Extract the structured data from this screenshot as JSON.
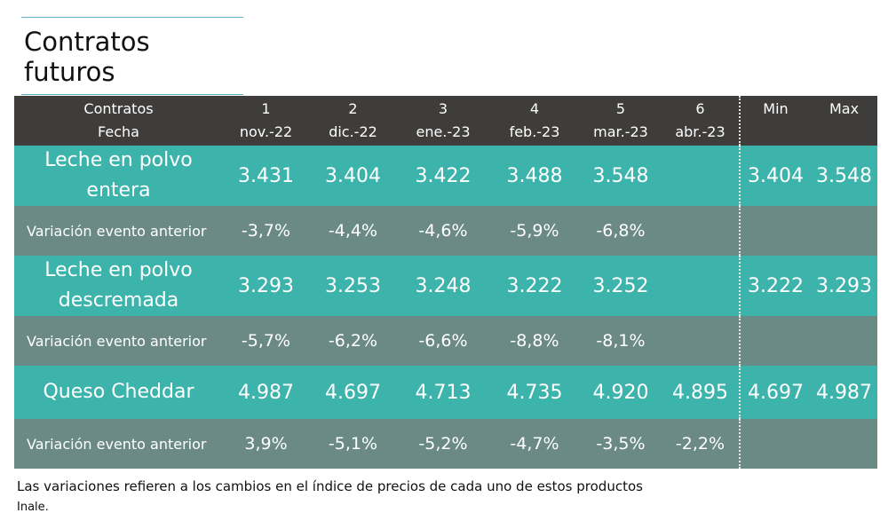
{
  "title": "Contratos futuros",
  "header": {
    "label_line1": "Contratos",
    "label_line2": "Fecha",
    "contracts": [
      {
        "num": "1",
        "date": "nov.-22"
      },
      {
        "num": "2",
        "date": "dic.-22"
      },
      {
        "num": "3",
        "date": "ene.-23"
      },
      {
        "num": "4",
        "date": "feb.-23"
      },
      {
        "num": "5",
        "date": "mar.-23"
      },
      {
        "num": "6",
        "date": "abr.-23"
      }
    ],
    "min": "Min",
    "max": "Max"
  },
  "rows": [
    {
      "product_line1": "Leche en polvo",
      "product_line2": "entera",
      "values": [
        "3.431",
        "3.404",
        "3.422",
        "3.488",
        "3.548",
        ""
      ],
      "min": "3.404",
      "max": "3.548",
      "var_label": "Variación evento anterior",
      "variations": [
        "-3,7%",
        "-4,4%",
        "-4,6%",
        "-5,9%",
        "-6,8%",
        ""
      ]
    },
    {
      "product_line1": "Leche en polvo",
      "product_line2": "descremada",
      "values": [
        "3.293",
        "3.253",
        "3.248",
        "3.222",
        "3.252",
        ""
      ],
      "min": "3.222",
      "max": "3.293",
      "var_label": "Variación evento anterior",
      "variations": [
        "-5,7%",
        "-6,2%",
        "-6,6%",
        "-8,8%",
        "-8,1%",
        ""
      ]
    },
    {
      "product_line1": "Queso Cheddar",
      "product_line2": "",
      "values": [
        "4.987",
        "4.697",
        "4.713",
        "4.735",
        "4.920",
        "4.895"
      ],
      "min": "4.697",
      "max": "4.987",
      "var_label": "Variación evento anterior",
      "variations": [
        "3,9%",
        "-5,1%",
        "-5,2%",
        "-4,7%",
        "-3,5%",
        "-2,2%"
      ]
    }
  ],
  "note": "Las variaciones refieren a los cambios en el índice de precios de cada uno de estos productos",
  "source": "Inale."
}
